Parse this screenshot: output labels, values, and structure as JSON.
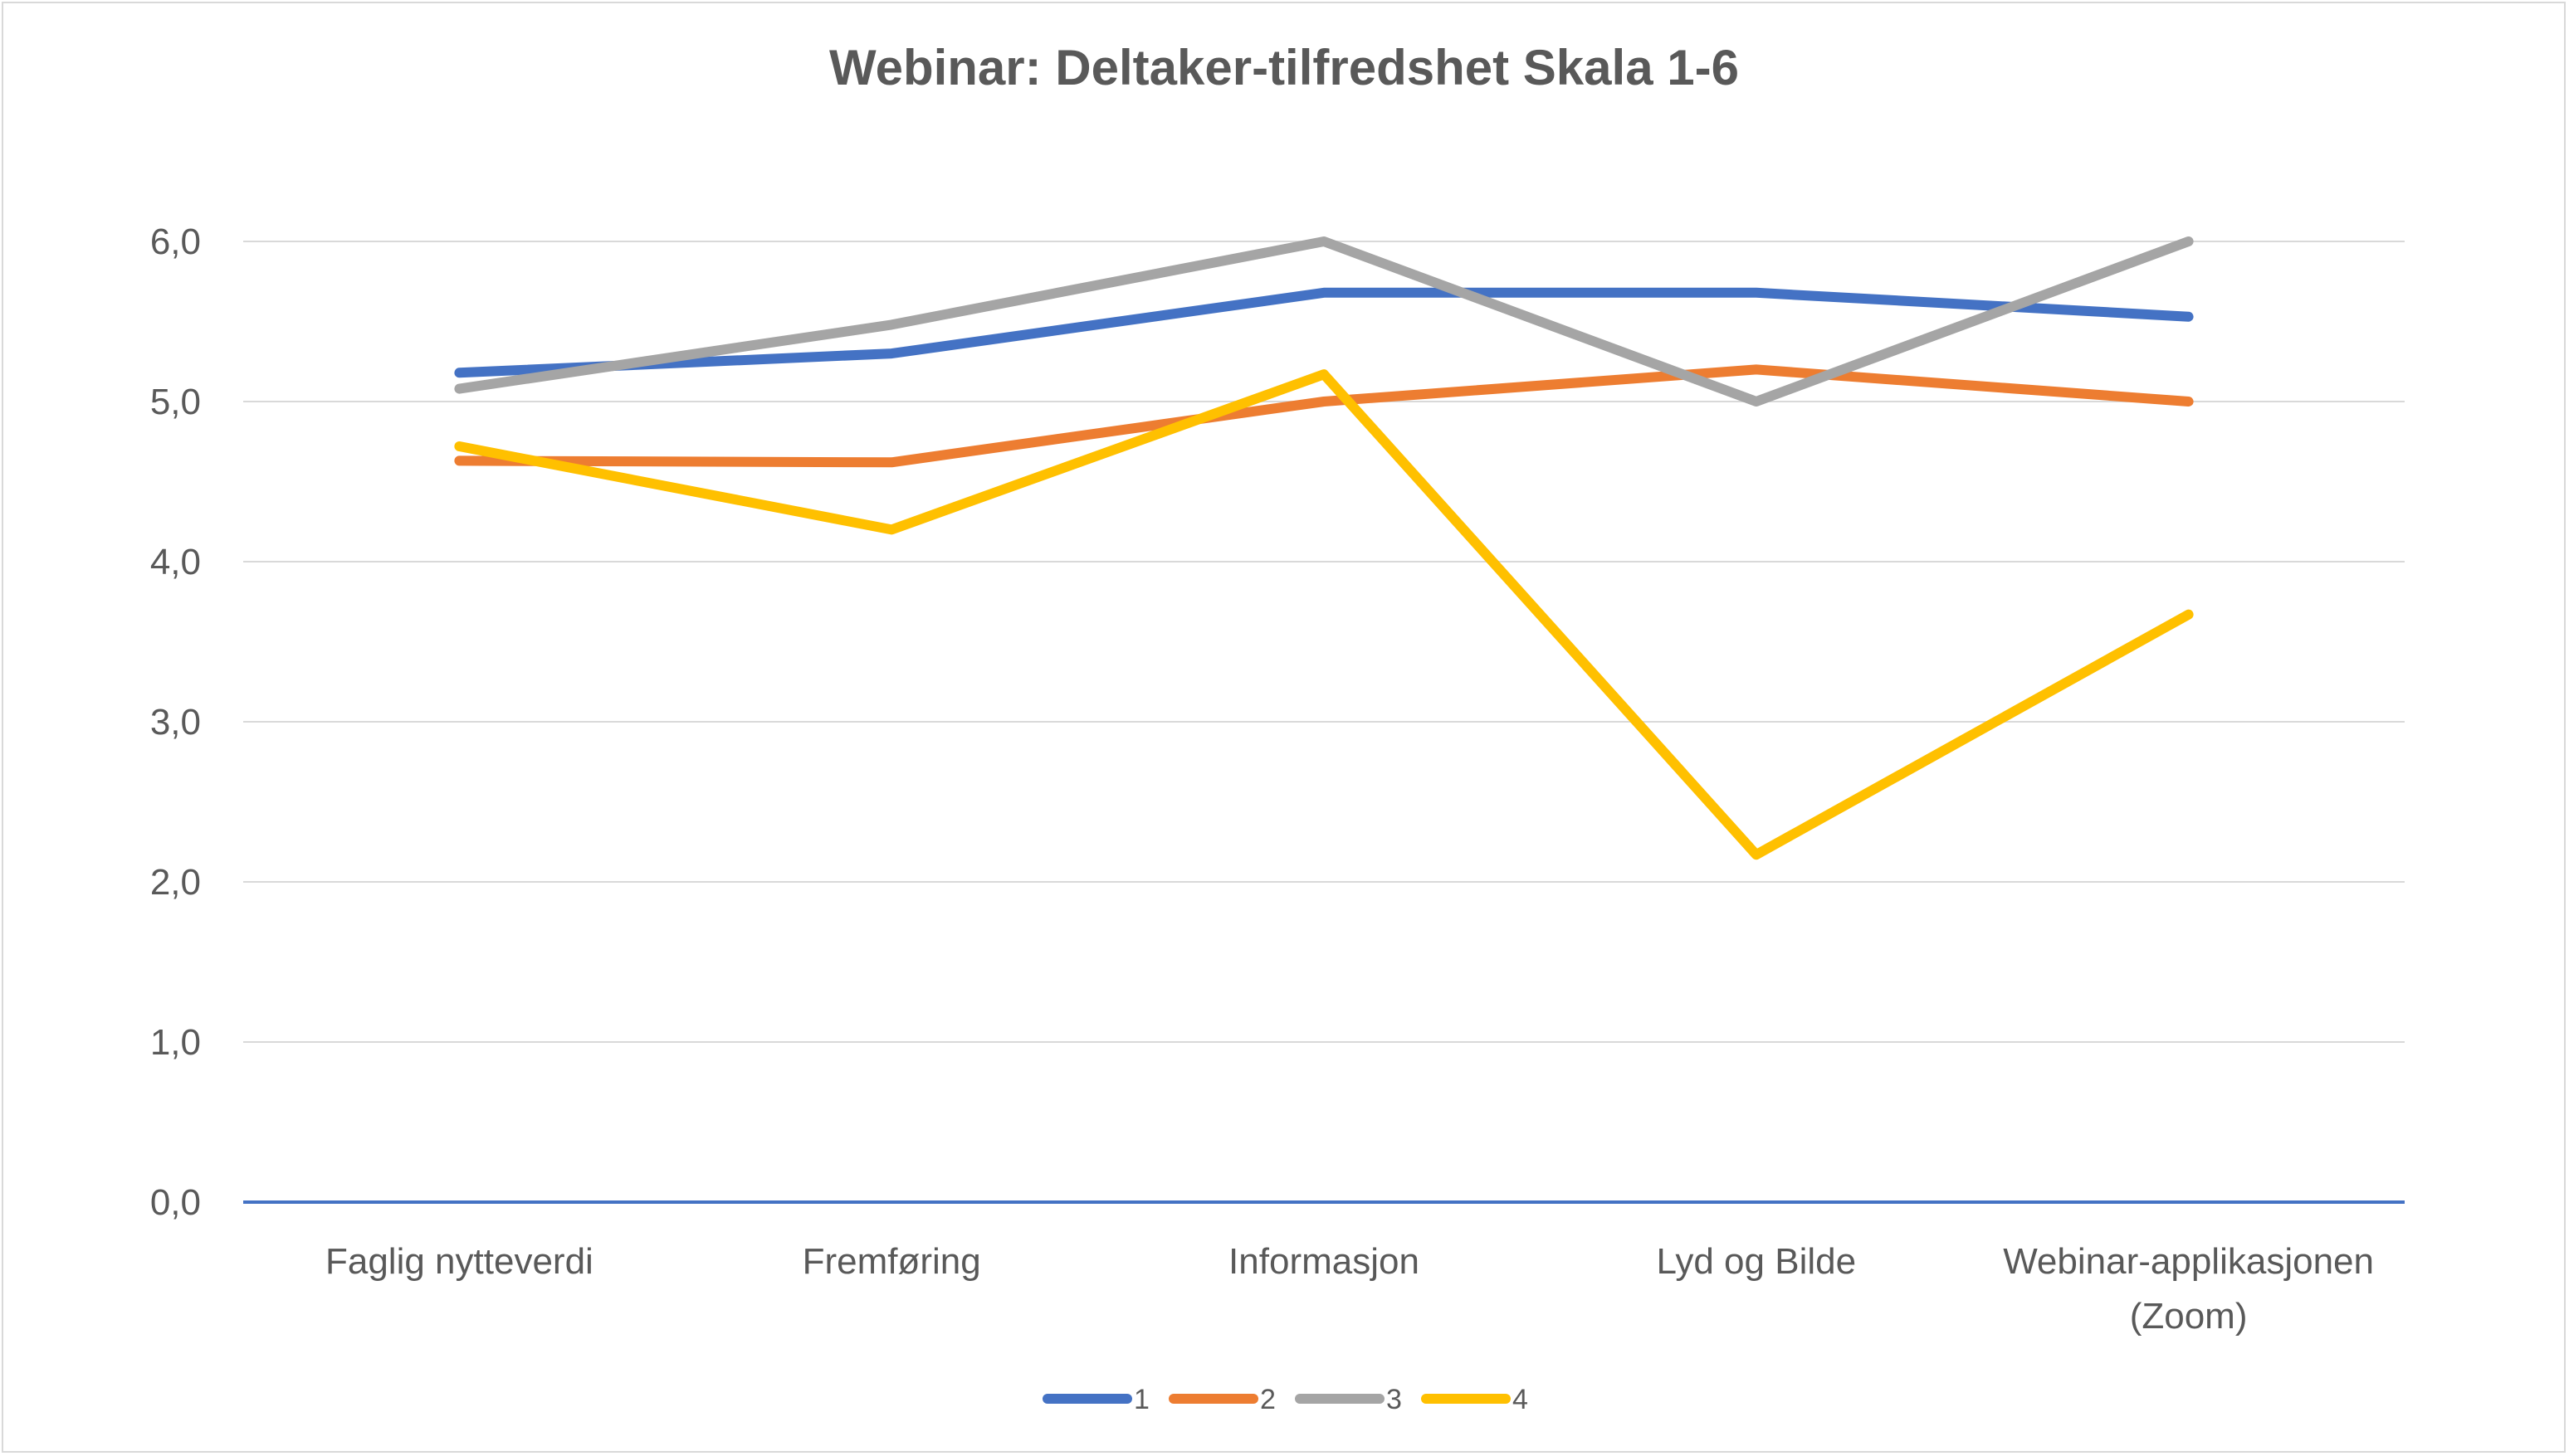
{
  "chart_data": {
    "type": "line",
    "title": "Webinar: Deltaker-tilfredshet Skala 1-6",
    "xlabel": "",
    "ylabel": "",
    "categories": [
      [
        "Faglig nytteverdi"
      ],
      [
        "Fremføring"
      ],
      [
        "Informasjon"
      ],
      [
        "Lyd og Bilde"
      ],
      [
        "Webinar-applikasjonen",
        "(Zoom)"
      ]
    ],
    "y_ticks": [
      "0,0",
      "1,0",
      "2,0",
      "3,0",
      "4,0",
      "5,0",
      "6,0"
    ],
    "ylim": [
      0,
      6
    ],
    "grid": true,
    "legend_position": "bottom",
    "series": [
      {
        "name": "1",
        "color": "#4472C4",
        "values": [
          5.18,
          5.3,
          5.68,
          5.68,
          5.53
        ]
      },
      {
        "name": "2",
        "color": "#ED7D31",
        "values": [
          4.63,
          4.62,
          5.0,
          5.2,
          5.0
        ]
      },
      {
        "name": "3",
        "color": "#A5A5A5",
        "values": [
          5.08,
          5.48,
          6.0,
          5.0,
          6.0
        ]
      },
      {
        "name": "4",
        "color": "#FFC000",
        "values": [
          4.72,
          4.2,
          5.17,
          2.17,
          3.67
        ]
      }
    ],
    "colors": {
      "gridline": "#d9d9d9",
      "baseline": "#4472C4",
      "text": "#595959"
    }
  }
}
